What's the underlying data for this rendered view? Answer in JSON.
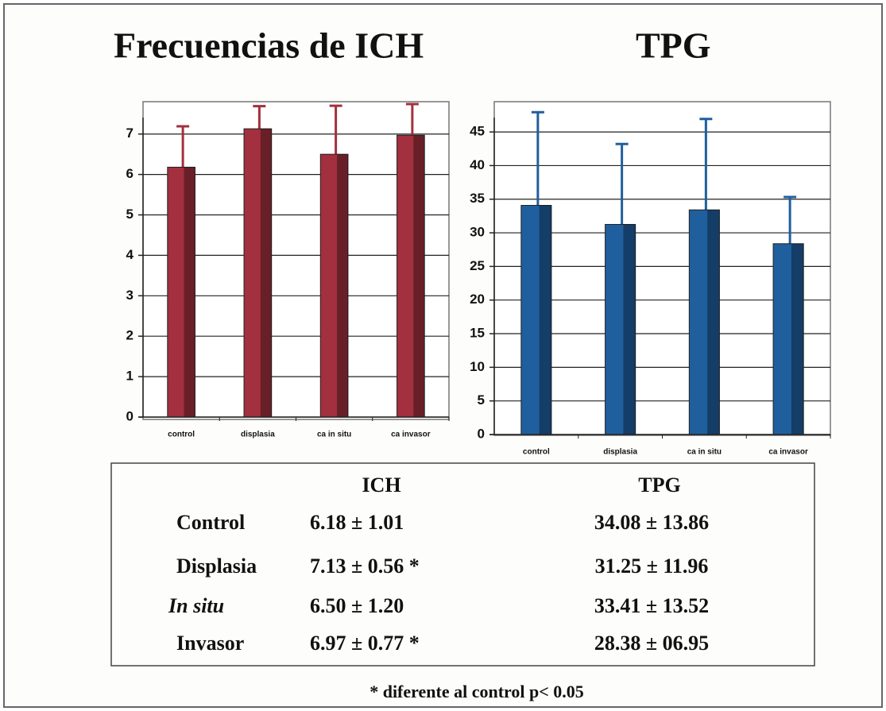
{
  "chart_data": [
    {
      "type": "bar",
      "title": "Frecuencias de ICH",
      "categories": [
        "control",
        "displasia",
        "ca in situ",
        "ca invasor"
      ],
      "series": [
        {
          "color": "#a2303e",
          "values": [
            6.18,
            7.13,
            6.5,
            6.97
          ],
          "errors": [
            1.01,
            0.56,
            1.2,
            0.77
          ]
        }
      ],
      "ylim": [
        0,
        7.8
      ],
      "yticks": [
        0,
        1,
        2,
        3,
        4,
        5,
        6,
        7
      ],
      "grid": true
    },
    {
      "type": "bar",
      "title": "TPG",
      "categories": [
        "control",
        "displasia",
        "ca in situ",
        "ca invasor"
      ],
      "series": [
        {
          "color": "#1f5f9e",
          "values": [
            34.08,
            31.25,
            33.41,
            28.38
          ],
          "errors": [
            13.86,
            11.96,
            13.52,
            6.95
          ]
        }
      ],
      "ylim": [
        0,
        49.5
      ],
      "yticks": [
        0,
        5,
        10,
        15,
        20,
        25,
        30,
        35,
        40,
        45
      ],
      "grid": true
    }
  ],
  "table": {
    "header": [
      "ICH",
      "TPG"
    ],
    "rows": [
      [
        "Control",
        "6.18 ± 1.01",
        "34.08 ± 13.86"
      ],
      [
        "Displasia",
        "7.13 ± 0.56 *",
        "31.25 ± 11.96"
      ],
      [
        "In situ",
        "6.50 ± 1.20",
        "33.41 ± 13.52"
      ],
      [
        "Invasor",
        "6.97 ± 0.77 *",
        "28.38 ± 06.95"
      ]
    ]
  },
  "footnote": "* diferente al control p< 0.05"
}
